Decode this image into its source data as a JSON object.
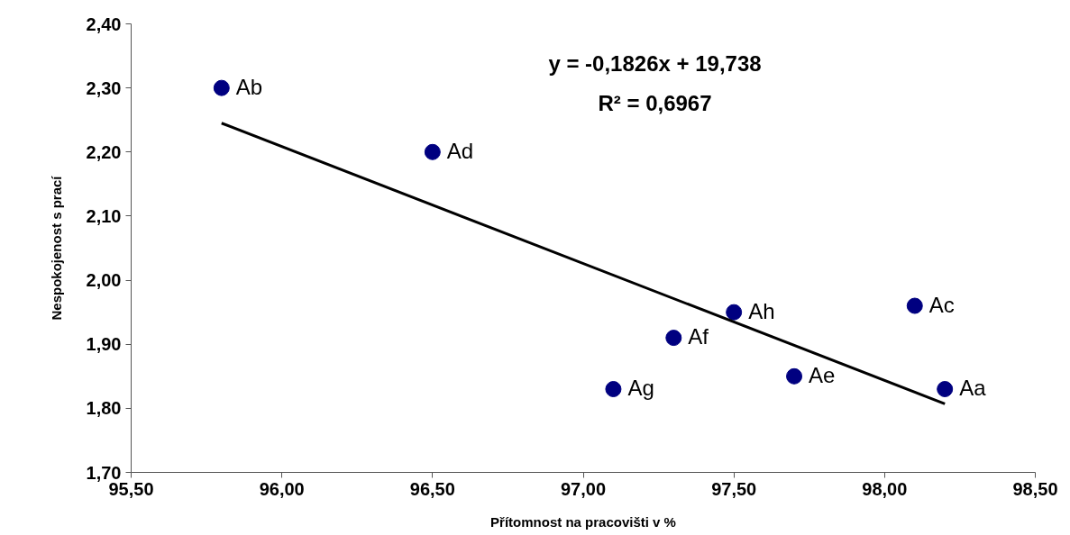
{
  "chart_data": {
    "type": "scatter",
    "xlabel": "Přítomnost na pracovišti v %",
    "ylabel": "Nespokojenost s prací",
    "x": [
      95.8,
      96.5,
      97.1,
      97.3,
      97.5,
      97.7,
      98.1,
      98.2
    ],
    "series": [
      {
        "type": "scatter",
        "marker": "circle",
        "color": "#000080",
        "values": [
          2.3,
          2.2,
          1.83,
          1.91,
          1.95,
          1.85,
          1.96,
          1.83
        ]
      },
      {
        "type": "line",
        "marker": "none",
        "color": "#000000",
        "x": [
          95.8,
          98.2
        ],
        "values": [
          2.245,
          1.807
        ]
      }
    ],
    "grid": false,
    "xlim": [
      95.5,
      98.5
    ],
    "ylim": [
      1.7,
      2.4
    ],
    "xticks": [
      {
        "value": 95.5,
        "label": "95,50"
      },
      {
        "value": 96.0,
        "label": "96,00"
      },
      {
        "value": 96.5,
        "label": "96,50"
      },
      {
        "value": 97.0,
        "label": "97,00"
      },
      {
        "value": 97.5,
        "label": "97,50"
      },
      {
        "value": 98.0,
        "label": "98,00"
      },
      {
        "value": 98.5,
        "label": "98,50"
      }
    ],
    "yticks": [
      {
        "value": 1.7,
        "label": "1,70"
      },
      {
        "value": 1.8,
        "label": "1,80"
      },
      {
        "value": 1.9,
        "label": "1,90"
      },
      {
        "value": 2.0,
        "label": "2,00"
      },
      {
        "value": 2.1,
        "label": "2,10"
      },
      {
        "value": 2.2,
        "label": "2,20"
      },
      {
        "value": 2.3,
        "label": "2,30"
      },
      {
        "value": 2.4,
        "label": "2,40"
      }
    ],
    "annotations": [
      "y = -0,1826x + 19,738",
      "R² = 0,6967",
      {
        "text": "Ab",
        "x": 95.8,
        "y": 2.3
      },
      {
        "text": "Ad",
        "x": 96.5,
        "y": 2.2
      },
      {
        "text": "Ag",
        "x": 97.1,
        "y": 1.83
      },
      {
        "text": "Af",
        "x": 97.3,
        "y": 1.91
      },
      {
        "text": "Ah",
        "x": 97.5,
        "y": 1.95
      },
      {
        "text": "Ae",
        "x": 97.7,
        "y": 1.85
      },
      {
        "text": "Ac",
        "x": 98.1,
        "y": 1.96
      },
      {
        "text": "Aa",
        "x": 98.2,
        "y": 1.83
      }
    ]
  }
}
